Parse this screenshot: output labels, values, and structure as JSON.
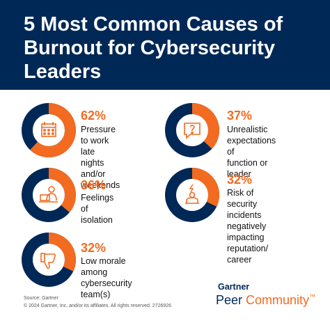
{
  "title": "5 Most Common Causes of Burnout for Cybersecurity Leaders",
  "colors": {
    "navy": "#002856",
    "orange": "#f26b21"
  },
  "chart_data": {
    "type": "pie",
    "items": [
      {
        "value": 62,
        "label": "62%",
        "text_lines": [
          "Pressure to work",
          "late nights and/or",
          "weekends"
        ],
        "icon": "calendar-icon"
      },
      {
        "value": 37,
        "label": "37%",
        "text_lines": [
          "Unrealistic",
          "expectations of",
          "function or leader"
        ],
        "icon": "question-bubble-icon"
      },
      {
        "value": 36,
        "label": "36%",
        "text_lines": [
          "Feelings of",
          "isolation"
        ],
        "icon": "person-at-laptop-icon"
      },
      {
        "value": 32,
        "label": "32%",
        "text_lines": [
          "Risk of security",
          "incidents negatively",
          "impacting reputation/",
          "career"
        ],
        "icon": "alert-person-icon"
      },
      {
        "value": 32,
        "label": "32%",
        "text_lines": [
          "Low morale among",
          "cybersecurity team(s)"
        ],
        "icon": "thumbs-down-icon"
      }
    ]
  },
  "footer": {
    "source": "Source: Gartner",
    "copyright": "© 2024 Gartner, Inc. and/or its affiliates. All rights reserved. 2726926",
    "brand_top": "Gartner",
    "brand_bottom_a": "Peer ",
    "brand_bottom_b": "Community",
    "trademark": "™"
  }
}
